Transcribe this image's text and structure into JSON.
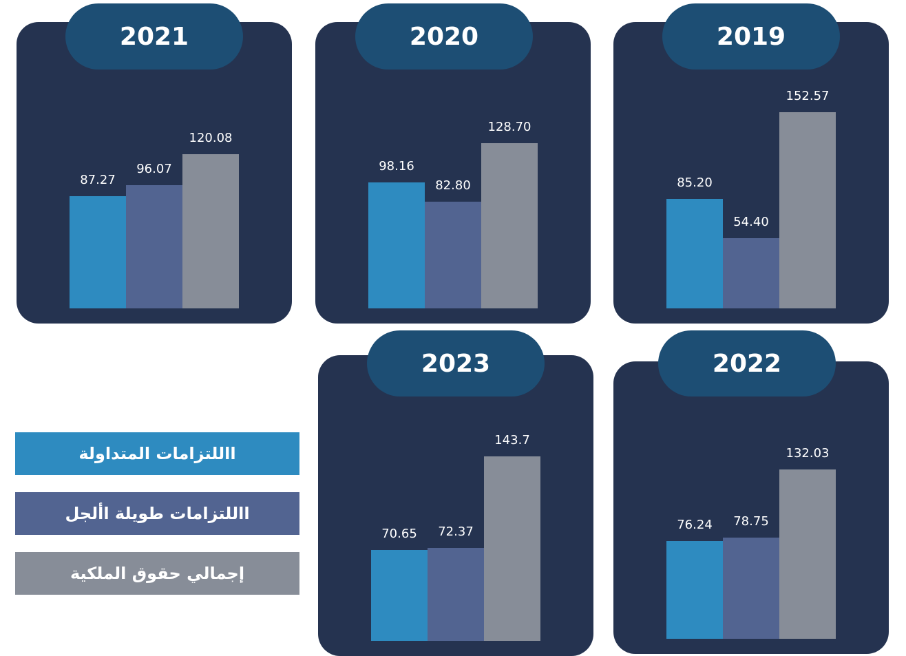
{
  "chart_data": [
    {
      "type": "bar",
      "title": "2021",
      "values": [
        87.27,
        96.07,
        120.08
      ]
    },
    {
      "type": "bar",
      "title": "2020",
      "values": [
        98.16,
        82.8,
        128.7
      ],
      "value_labels": [
        "98.16",
        "82.80",
        "128.70"
      ]
    },
    {
      "type": "bar",
      "title": "2019",
      "values": [
        85.2,
        54.4,
        152.57
      ],
      "value_labels": [
        "85.20",
        "54.40",
        "152.57"
      ]
    },
    {
      "type": "bar",
      "title": "2023",
      "values": [
        70.65,
        72.37,
        143.7
      ]
    },
    {
      "type": "bar",
      "title": "2022",
      "values": [
        76.24,
        78.75,
        132.03
      ]
    }
  ],
  "legend": [
    {
      "name": "االلتزامات المتداولة",
      "color": "#2e8bc0"
    },
    {
      "name": "االلتزامات طويلة األجل",
      "color": "#526491"
    },
    {
      "name": "إجمالي حقوق الملكية",
      "color": "#878d98"
    }
  ]
}
